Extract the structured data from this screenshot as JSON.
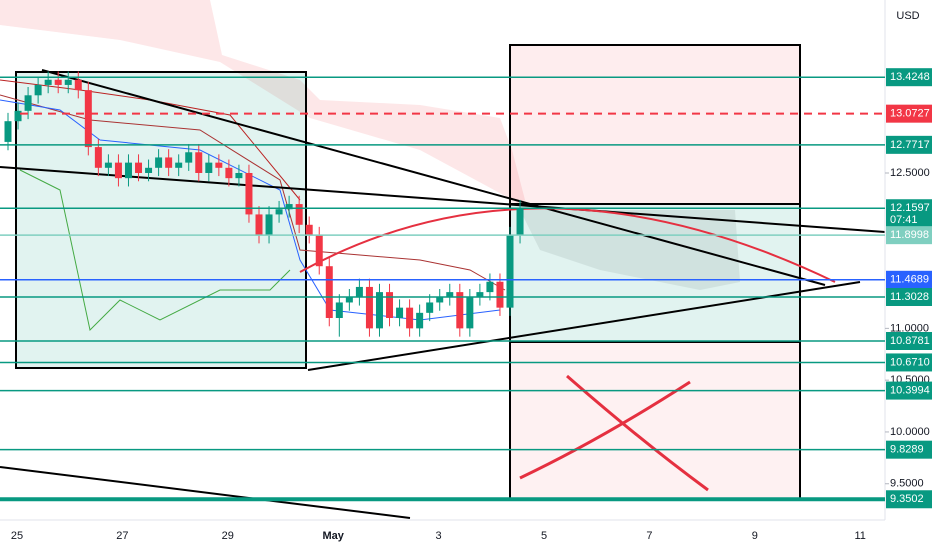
{
  "chart_data": {
    "type": "candlestick",
    "currency": "USD",
    "ylim": [
      9.15,
      14.17
    ],
    "yticks": [
      {
        "value": 12.5,
        "label": "12.5000"
      },
      {
        "value": 11.0,
        "label": "11.0000"
      },
      {
        "value": 10.5,
        "label": "10.5000"
      },
      {
        "value": 10.0,
        "label": "10.0000"
      },
      {
        "value": 9.5,
        "label": "9.5000"
      }
    ],
    "xticks": [
      "25",
      "27",
      "29",
      "May",
      "3",
      "5",
      "7",
      "9",
      "11"
    ],
    "up_color": "#089981",
    "down_color": "#f23645",
    "open": [
      12.8,
      13.0,
      13.1,
      13.25,
      13.35,
      13.4,
      13.35,
      13.4,
      13.3,
      12.75,
      12.55,
      12.6,
      12.45,
      12.6,
      12.5,
      12.55,
      12.65,
      12.55,
      12.6,
      12.7,
      12.5,
      12.6,
      12.55,
      12.45,
      12.5,
      12.1,
      11.9,
      12.1,
      12.15,
      12.2,
      12.0,
      11.9,
      11.6,
      11.1,
      11.25,
      11.3,
      11.4,
      11.0,
      11.35,
      11.1,
      11.2,
      11.0,
      11.15,
      11.25,
      11.3,
      11.35,
      11.0,
      11.3,
      11.35,
      11.45,
      11.2,
      11.9
    ],
    "high": [
      13.08,
      13.18,
      13.33,
      13.43,
      13.48,
      13.48,
      13.48,
      13.48,
      13.38,
      12.83,
      12.68,
      12.68,
      12.68,
      12.68,
      12.63,
      12.73,
      12.73,
      12.68,
      12.78,
      12.78,
      12.68,
      12.68,
      12.63,
      12.58,
      12.58,
      12.18,
      12.18,
      12.23,
      12.28,
      12.28,
      12.08,
      11.98,
      11.68,
      11.33,
      11.38,
      11.48,
      11.48,
      11.43,
      11.43,
      11.28,
      11.28,
      11.23,
      11.33,
      11.38,
      11.43,
      11.43,
      11.38,
      11.43,
      11.53,
      11.53,
      11.98,
      12.24
    ],
    "low": [
      12.72,
      12.92,
      13.02,
      13.17,
      13.27,
      13.27,
      13.27,
      13.22,
      12.67,
      12.47,
      12.47,
      12.37,
      12.37,
      12.42,
      12.42,
      12.47,
      12.47,
      12.47,
      12.52,
      12.42,
      12.42,
      12.47,
      12.37,
      12.37,
      12.02,
      11.82,
      11.82,
      12.02,
      12.07,
      11.92,
      11.82,
      11.52,
      11.02,
      10.92,
      11.17,
      11.22,
      10.92,
      10.92,
      11.02,
      11.02,
      10.92,
      10.92,
      11.07,
      11.17,
      11.22,
      10.92,
      10.92,
      11.22,
      11.27,
      11.12,
      11.12,
      11.82
    ],
    "close": [
      13.0,
      13.1,
      13.25,
      13.35,
      13.4,
      13.35,
      13.4,
      13.3,
      12.75,
      12.55,
      12.6,
      12.45,
      12.6,
      12.5,
      12.55,
      12.65,
      12.55,
      12.6,
      12.7,
      12.5,
      12.6,
      12.55,
      12.45,
      12.5,
      12.1,
      11.9,
      12.1,
      12.15,
      12.2,
      12.0,
      11.9,
      11.6,
      11.1,
      11.25,
      11.3,
      11.4,
      11.0,
      11.35,
      11.1,
      11.2,
      11.0,
      11.15,
      11.25,
      11.3,
      11.35,
      11.0,
      11.3,
      11.35,
      11.45,
      11.2,
      11.9,
      12.16
    ],
    "levels": [
      {
        "value": 13.4248,
        "label": "13.4248",
        "color": "#089981"
      },
      {
        "value": 13.0727,
        "label": "13.0727",
        "color": "#f23645",
        "dashed": true
      },
      {
        "value": 12.7717,
        "label": "12.7717",
        "color": "#089981"
      },
      {
        "value": 12.1597,
        "label": "12.1597",
        "color": "#089981",
        "countdown": "07:41"
      },
      {
        "value": 11.8998,
        "label": "11.8998",
        "color": "#7fcfc0"
      },
      {
        "value": 11.4689,
        "label": "11.4689",
        "color": "#2962ff"
      },
      {
        "value": 11.3028,
        "label": "11.3028",
        "color": "#089981"
      },
      {
        "value": 10.8781,
        "label": "10.8781",
        "color": "#089981"
      },
      {
        "value": 10.671,
        "label": "10.6710",
        "color": "#089981"
      },
      {
        "value": 10.3994,
        "label": "10.3994",
        "color": "#089981"
      },
      {
        "value": 9.8289,
        "label": "9.8289",
        "color": "#089981"
      },
      {
        "value": 9.3502,
        "label": "9.3502",
        "color": "#089981",
        "thick": true
      }
    ]
  }
}
